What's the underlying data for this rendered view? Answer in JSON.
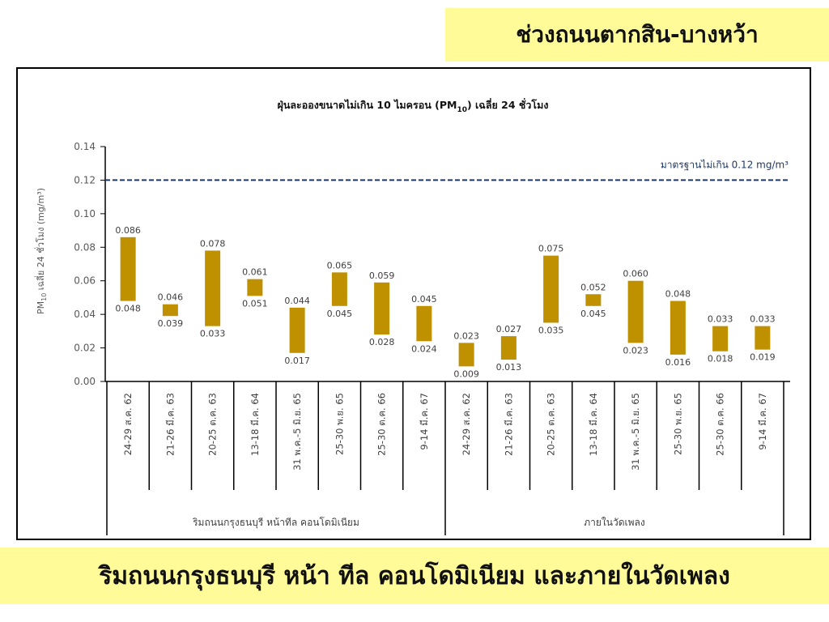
{
  "header": {
    "banner_text": "ช่วงถนนตากสิน-บางหว้า"
  },
  "footer": {
    "banner_text": "ริมถนนกรุงธนบุรี หน้า ทีล คอนโดมิเนียม และภายในวัดเพลง"
  },
  "colors": {
    "bar": "#bf9000",
    "standard_line": "#1f3864",
    "banner": "#fffb99"
  },
  "chart_data": {
    "type": "bar",
    "subtype": "floating-range",
    "title": "ฝุ่นละอองขนาดไม่เกิน 10 ไมครอน (PM",
    "title_sub": "10",
    "title_suffix": ") เฉลี่ย 24 ชั่วโมง",
    "ylabel_prefix": "PM",
    "ylabel_sub": "10",
    "ylabel_suffix": " เฉลี่ย 24 ชั่วโมง (mg/m³)",
    "ylim": [
      0,
      0.14
    ],
    "yticks": [
      "0.00",
      "0.02",
      "0.04",
      "0.06",
      "0.08",
      "0.10",
      "0.12",
      "0.14"
    ],
    "ytick_values": [
      0,
      0.02,
      0.04,
      0.06,
      0.08,
      0.1,
      0.12,
      0.14
    ],
    "standard": {
      "value": 0.12,
      "label": "มาตรฐานไม่เกิน 0.12 mg/m³"
    },
    "categories": [
      "24-29 ส.ค. 62",
      "21-26 มี.ค. 63",
      "20-25 ต.ค. 63",
      "13-18 มี.ค. 64",
      "31 พ.ค.-5 มิ.ย. 65",
      "25-30 พ.ย. 65",
      "25-30 ต.ค. 66",
      "9-14 มี.ค. 67",
      "24-29 ส.ค. 62",
      "21-26 มี.ค. 63",
      "20-25 ต.ค. 63",
      "13-18 มี.ค. 64",
      "31 พ.ค.-5 มิ.ย. 65",
      "25-30 พ.ย. 65",
      "25-30 ต.ค. 66",
      "9-14 มี.ค. 67"
    ],
    "groups": [
      {
        "label": "ริมถนนกรุงธนบุรี หน้าทีล คอนโดมิเนียม",
        "count": 8
      },
      {
        "label": "ภายในวัดเพลง",
        "count": 8
      }
    ],
    "max_values": [
      0.086,
      0.046,
      0.078,
      0.061,
      0.044,
      0.065,
      0.059,
      0.045,
      0.023,
      0.027,
      0.075,
      0.052,
      0.06,
      0.048,
      0.033,
      0.033
    ],
    "min_values": [
      0.048,
      0.039,
      0.033,
      0.051,
      0.017,
      0.045,
      0.028,
      0.024,
      0.009,
      0.013,
      0.035,
      0.045,
      0.023,
      0.016,
      0.018,
      0.019
    ],
    "max_labels": [
      "0.086",
      "0.046",
      "0.078",
      "0.061",
      "0.044",
      "0.065",
      "0.059",
      "0.045",
      "0.023",
      "0.027",
      "0.075",
      "0.052",
      "0.060",
      "0.048",
      "0.033",
      "0.033"
    ],
    "min_labels": [
      "0.048",
      "0.039",
      "0.033",
      "0.051",
      "0.017",
      "0.045",
      "0.028",
      "0.024",
      "0.009",
      "0.013",
      "0.035",
      "0.045",
      "0.023",
      "0.016",
      "0.018",
      "0.019"
    ],
    "grid": false,
    "legend": "none"
  }
}
